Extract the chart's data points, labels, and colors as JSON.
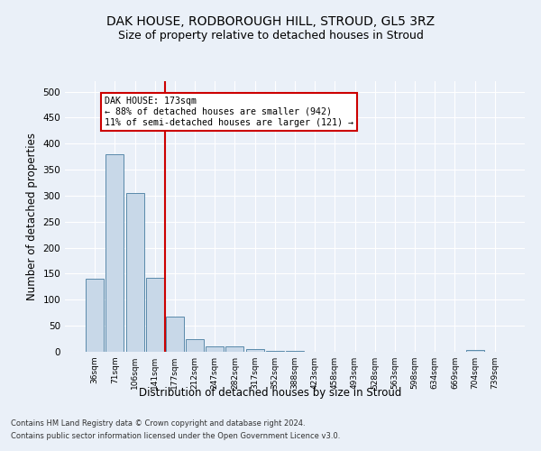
{
  "title": "DAK HOUSE, RODBOROUGH HILL, STROUD, GL5 3RZ",
  "subtitle": "Size of property relative to detached houses in Stroud",
  "xlabel": "Distribution of detached houses by size in Stroud",
  "ylabel": "Number of detached properties",
  "footnote1": "Contains HM Land Registry data © Crown copyright and database right 2024.",
  "footnote2": "Contains public sector information licensed under the Open Government Licence v3.0.",
  "bar_labels": [
    "36sqm",
    "71sqm",
    "106sqm",
    "141sqm",
    "177sqm",
    "212sqm",
    "247sqm",
    "282sqm",
    "317sqm",
    "352sqm",
    "388sqm",
    "423sqm",
    "458sqm",
    "493sqm",
    "528sqm",
    "563sqm",
    "598sqm",
    "634sqm",
    "669sqm",
    "704sqm",
    "739sqm"
  ],
  "bar_heights": [
    140,
    380,
    305,
    143,
    68,
    25,
    10,
    10,
    5,
    2,
    1,
    0,
    0,
    0,
    0,
    0,
    0,
    0,
    0,
    4,
    0
  ],
  "bar_color": "#c8d8e8",
  "bar_edge_color": "#5a8aaa",
  "vline_color": "#cc0000",
  "annotation_line1": "DAK HOUSE: 173sqm",
  "annotation_line2": "← 88% of detached houses are smaller (942)",
  "annotation_line3": "11% of semi-detached houses are larger (121) →",
  "annotation_box_color": "#ffffff",
  "annotation_box_edge": "#cc0000",
  "ylim": [
    0,
    520
  ],
  "yticks": [
    0,
    50,
    100,
    150,
    200,
    250,
    300,
    350,
    400,
    450,
    500
  ],
  "background_color": "#eaf0f8",
  "grid_color": "#ffffff",
  "title_fontsize": 10,
  "subtitle_fontsize": 9,
  "xlabel_fontsize": 8.5,
  "ylabel_fontsize": 8.5
}
